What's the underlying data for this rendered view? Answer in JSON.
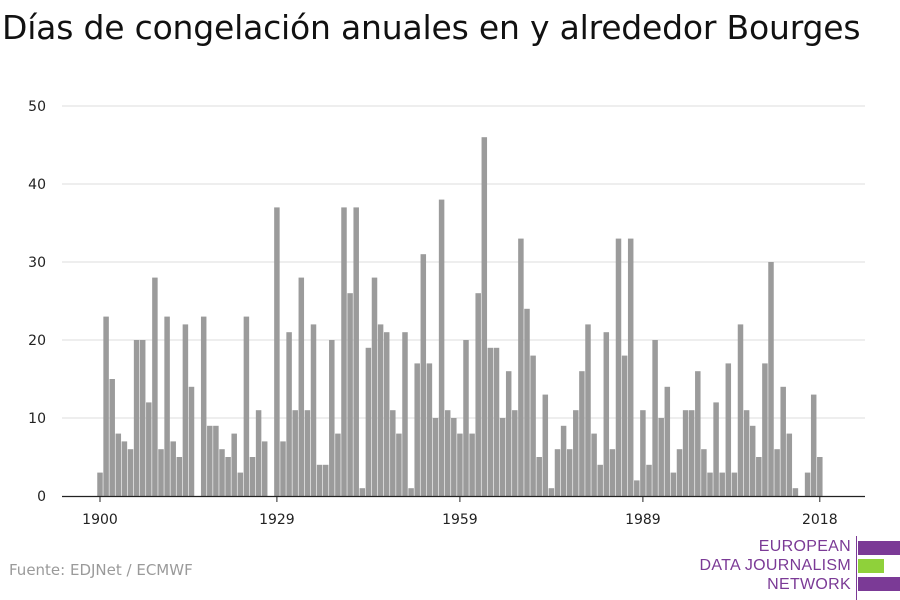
{
  "title": "Días de congelación anuales en y alrededor Bourges",
  "source": "Fuente: EDJNet / ECMWF",
  "logo": {
    "lines": [
      "EUROPEAN",
      "DATA JOURNALISM",
      "NETWORK"
    ],
    "colors": {
      "text": "#7b3a96",
      "bar_purple": "#7b3a96",
      "bar_green": "#8fd13a"
    }
  },
  "chart_data": {
    "type": "bar",
    "title": "Días de congelación anuales en y alrededor Bourges",
    "xlabel": "",
    "ylabel": "",
    "x": [
      1900,
      1901,
      1902,
      1903,
      1904,
      1905,
      1906,
      1907,
      1908,
      1909,
      1910,
      1911,
      1912,
      1913,
      1914,
      1915,
      1916,
      1917,
      1918,
      1919,
      1920,
      1921,
      1922,
      1923,
      1924,
      1925,
      1926,
      1927,
      1928,
      1929,
      1930,
      1931,
      1932,
      1933,
      1934,
      1935,
      1936,
      1937,
      1938,
      1939,
      1940,
      1941,
      1942,
      1943,
      1944,
      1945,
      1946,
      1947,
      1948,
      1949,
      1950,
      1951,
      1952,
      1953,
      1954,
      1955,
      1956,
      1957,
      1958,
      1959,
      1960,
      1961,
      1962,
      1963,
      1964,
      1965,
      1966,
      1967,
      1968,
      1969,
      1970,
      1971,
      1972,
      1973,
      1974,
      1975,
      1976,
      1977,
      1978,
      1979,
      1980,
      1981,
      1982,
      1983,
      1984,
      1985,
      1986,
      1987,
      1988,
      1989,
      1990,
      1991,
      1992,
      1993,
      1994,
      1995,
      1996,
      1997,
      1998,
      1999,
      2000,
      2001,
      2002,
      2003,
      2004,
      2005,
      2006,
      2007,
      2008,
      2009,
      2010,
      2011,
      2012,
      2013,
      2014,
      2015,
      2016,
      2017,
      2018
    ],
    "values": [
      3,
      23,
      15,
      8,
      7,
      6,
      20,
      20,
      12,
      28,
      6,
      23,
      7,
      5,
      22,
      14,
      0,
      23,
      9,
      9,
      6,
      5,
      8,
      3,
      23,
      5,
      11,
      7,
      0,
      37,
      7,
      21,
      11,
      28,
      11,
      22,
      4,
      4,
      20,
      8,
      37,
      26,
      37,
      1,
      19,
      28,
      22,
      21,
      11,
      8,
      21,
      1,
      17,
      31,
      17,
      10,
      38,
      11,
      10,
      8,
      20,
      8,
      26,
      46,
      19,
      19,
      10,
      16,
      11,
      33,
      24,
      18,
      5,
      13,
      1,
      6,
      9,
      6,
      11,
      16,
      22,
      8,
      4,
      21,
      6,
      33,
      18,
      33,
      2,
      11,
      4,
      20,
      10,
      14,
      3,
      6,
      11,
      11,
      16,
      6,
      3,
      12,
      3,
      17,
      3,
      22,
      11,
      9,
      5,
      17,
      30,
      6,
      14,
      8,
      1,
      0,
      3,
      13,
      5
    ],
    "xticks": [
      1900,
      1929,
      1959,
      1989,
      2018
    ],
    "yticks": [
      0,
      10,
      20,
      30,
      40,
      50
    ],
    "ylim": [
      0,
      50
    ],
    "grid": true,
    "bar_color": "#9b9b9b"
  }
}
